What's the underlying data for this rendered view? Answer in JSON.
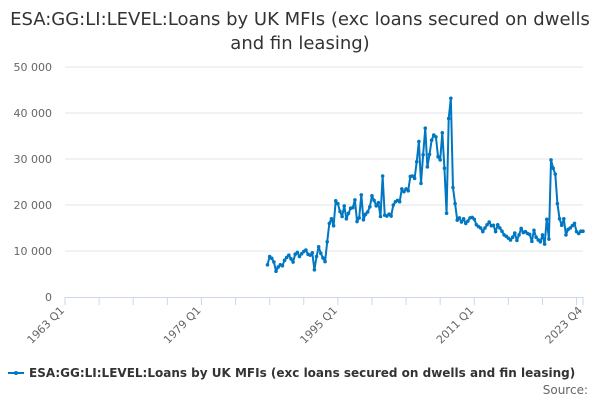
{
  "chart_data": {
    "type": "line",
    "title": "ESA:GG:LI:LEVEL:Loans by UK MFIs (exc loans secured on dwells and fin leasing)",
    "xlabel": "",
    "ylabel": "",
    "x_tick_labels": [
      "1963 Q1",
      "1979 Q1",
      "1995 Q1",
      "2011 Q1",
      "2023 Q4"
    ],
    "y_tick_labels": [
      "0",
      "10 000",
      "20 000",
      "30 000",
      "40 000",
      "50 000"
    ],
    "ylim": [
      0,
      50000
    ],
    "xlim": [
      "1963 Q1",
      "2023 Q4"
    ],
    "grid": "horizontal",
    "legend_position": "bottom",
    "color": "#0077c0",
    "series": [
      {
        "name": "ESA:GG:LI:LEVEL:Loans by UK MFIs (exc loans secured on dwells and fin leasing)",
        "start": "1986 Q4",
        "end": "2023 Q4",
        "values": [
          7000,
          8800,
          8400,
          7600,
          5600,
          6500,
          7000,
          6800,
          8000,
          8600,
          9100,
          8300,
          7600,
          9300,
          9700,
          8800,
          9400,
          9900,
          10200,
          9300,
          9100,
          9600,
          5900,
          8800,
          10900,
          9500,
          8500,
          7700,
          12000,
          16000,
          17000,
          15500,
          20900,
          20300,
          18600,
          17500,
          19800,
          17000,
          18200,
          19300,
          19400,
          21100,
          16400,
          17200,
          22200,
          16800,
          18000,
          18500,
          19600,
          22000,
          21000,
          19800,
          20500,
          17500,
          26300,
          17800,
          17600,
          18000,
          17600,
          20000,
          20700,
          21000,
          20700,
          23500,
          22900,
          23500,
          23100,
          26200,
          26300,
          25800,
          29400,
          33800,
          24700,
          30900,
          36700,
          28300,
          31000,
          34100,
          35200,
          34800,
          30500,
          29800,
          35700,
          28000,
          18200,
          38800,
          43200,
          23800,
          20300,
          16700,
          17200,
          16300,
          17000,
          16000,
          16500,
          17200,
          17300,
          16900,
          15700,
          15300,
          15000,
          14200,
          15000,
          15700,
          16300,
          15500,
          15600,
          14200,
          15700,
          15000,
          14300,
          13500,
          13200,
          12800,
          12400,
          13000,
          13900,
          12300,
          13500,
          14900,
          14000,
          14200,
          13800,
          13600,
          12100,
          14500,
          13000,
          12400,
          12000,
          13500,
          11500,
          16900,
          12600,
          29800,
          28000,
          26700,
          20300,
          17000,
          15600,
          17000,
          13500,
          14700,
          15000,
          15500,
          16000,
          14200,
          13800,
          14300,
          14300
        ]
      }
    ]
  },
  "legend": {
    "label": "ESA:GG:LI:LEVEL:Loans by UK MFIs (exc loans secured on dwells and fin leasing)"
  },
  "source": {
    "label": "Source:"
  }
}
